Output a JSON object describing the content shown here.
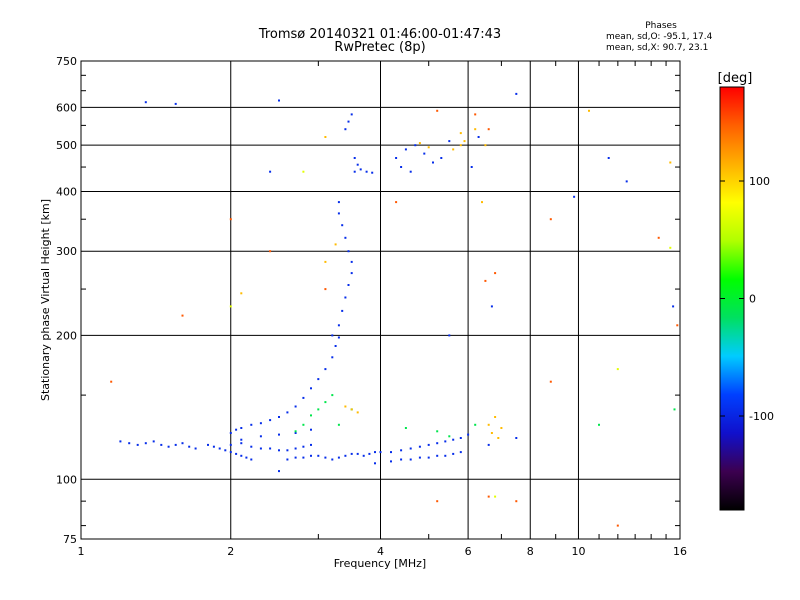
{
  "header": {
    "title": "Tromsø 20140321 01:46:00-01:47:43",
    "subtitle": "RwPretec (8p)"
  },
  "phase_stats": {
    "title": "Phases",
    "o_line": "mean, sd,O: -95.1, 17.4",
    "x_line": "mean, sd,X: 90.7, 23.1"
  },
  "colorbar": {
    "label": "[deg]",
    "range": [
      -180,
      180
    ],
    "ticks": [
      100,
      0,
      -100
    ],
    "colormap": [
      "#000000",
      "#3c0050",
      "#1010cc",
      "#0040ff",
      "#00ccff",
      "#00e060",
      "#00ff00",
      "#b0ff00",
      "#ffff00",
      "#ffb000",
      "#ff6000",
      "#ff0000"
    ]
  },
  "chart_data": {
    "type": "scatter",
    "title": "Tromsø 20140321 01:46:00-01:47:43",
    "subtitle": "RwPretec (8p)",
    "xlabel": "Frequency [MHz]",
    "ylabel": "Stationary phase Virtual Height [km]",
    "x_scale": "log",
    "y_scale": "log",
    "xlim": [
      1,
      16
    ],
    "ylim": [
      75,
      750
    ],
    "xticks": [
      1,
      2,
      4,
      6,
      8,
      10,
      16
    ],
    "yticks": [
      75,
      100,
      200,
      300,
      400,
      500,
      600,
      750
    ],
    "grid": true,
    "color_by": "phase [deg]",
    "series": [
      {
        "name": "",
        "points": [
          [
            1.2,
            120,
            -95
          ],
          [
            1.25,
            119,
            -95
          ],
          [
            1.3,
            118,
            -95
          ],
          [
            1.35,
            119,
            -95
          ],
          [
            1.4,
            120,
            -95
          ],
          [
            1.45,
            118,
            -95
          ],
          [
            1.5,
            117,
            -95
          ],
          [
            1.55,
            118,
            -95
          ],
          [
            1.6,
            119,
            -95
          ],
          [
            1.65,
            117,
            -95
          ],
          [
            1.7,
            116,
            -95
          ],
          [
            1.8,
            118,
            -95
          ],
          [
            1.85,
            117,
            -95
          ],
          [
            1.9,
            116,
            -95
          ],
          [
            1.95,
            115,
            -95
          ],
          [
            2.0,
            114,
            -95
          ],
          [
            2.05,
            113,
            -95
          ],
          [
            2.1,
            112,
            -95
          ],
          [
            2.15,
            111,
            -95
          ],
          [
            2.2,
            110,
            -95
          ],
          [
            2.0,
            125,
            -95
          ],
          [
            2.05,
            127,
            -95
          ],
          [
            2.1,
            128,
            -95
          ],
          [
            2.2,
            130,
            -95
          ],
          [
            2.3,
            131,
            -95
          ],
          [
            2.4,
            133,
            -95
          ],
          [
            2.5,
            135,
            -95
          ],
          [
            2.6,
            138,
            -95
          ],
          [
            2.7,
            142,
            -95
          ],
          [
            2.8,
            148,
            -95
          ],
          [
            2.9,
            155,
            -95
          ],
          [
            3.0,
            162,
            -95
          ],
          [
            3.1,
            170,
            -95
          ],
          [
            3.2,
            180,
            -95
          ],
          [
            3.25,
            190,
            -95
          ],
          [
            3.3,
            198,
            -95
          ],
          [
            2.0,
            118,
            -95
          ],
          [
            2.1,
            119,
            -95
          ],
          [
            2.2,
            117,
            -95
          ],
          [
            2.3,
            116,
            -95
          ],
          [
            2.4,
            116,
            -95
          ],
          [
            2.5,
            115,
            -95
          ],
          [
            2.6,
            115,
            -95
          ],
          [
            2.7,
            116,
            -95
          ],
          [
            2.8,
            117,
            -95
          ],
          [
            2.9,
            118,
            -95
          ],
          [
            2.1,
            121,
            -95
          ],
          [
            2.3,
            123,
            -95
          ],
          [
            2.5,
            124,
            -95
          ],
          [
            2.7,
            125,
            -95
          ],
          [
            2.9,
            127,
            -95
          ],
          [
            2.6,
            110,
            -95
          ],
          [
            2.7,
            111,
            -95
          ],
          [
            2.8,
            111,
            -95
          ],
          [
            2.9,
            112,
            -95
          ],
          [
            3.0,
            112,
            -95
          ],
          [
            3.1,
            111,
            -95
          ],
          [
            3.2,
            110,
            -95
          ],
          [
            3.3,
            111,
            -95
          ],
          [
            3.4,
            112,
            -95
          ],
          [
            3.5,
            113,
            -95
          ],
          [
            3.6,
            113,
            -95
          ],
          [
            3.7,
            112,
            -95
          ],
          [
            3.8,
            113,
            -95
          ],
          [
            3.9,
            114,
            -95
          ],
          [
            4.0,
            114,
            -95
          ],
          [
            4.2,
            114,
            -95
          ],
          [
            4.4,
            115,
            -95
          ],
          [
            4.6,
            116,
            -95
          ],
          [
            4.8,
            117,
            -95
          ],
          [
            5.0,
            118,
            -95
          ],
          [
            5.2,
            119,
            -95
          ],
          [
            5.4,
            120,
            -95
          ],
          [
            5.6,
            121,
            -95
          ],
          [
            5.8,
            122,
            -95
          ],
          [
            6.0,
            124,
            -95
          ],
          [
            4.2,
            109,
            -95
          ],
          [
            4.4,
            110,
            -95
          ],
          [
            4.6,
            110,
            -95
          ],
          [
            4.8,
            111,
            -95
          ],
          [
            5.0,
            111,
            -95
          ],
          [
            5.2,
            112,
            -95
          ],
          [
            5.4,
            112,
            -95
          ],
          [
            5.6,
            113,
            -95
          ],
          [
            5.8,
            114,
            -95
          ],
          [
            3.2,
            200,
            -95
          ],
          [
            3.3,
            210,
            -95
          ],
          [
            3.35,
            225,
            -95
          ],
          [
            3.4,
            240,
            -95
          ],
          [
            3.45,
            255,
            -95
          ],
          [
            3.5,
            270,
            -95
          ],
          [
            3.5,
            285,
            -95
          ],
          [
            3.45,
            300,
            -95
          ],
          [
            3.4,
            320,
            -95
          ],
          [
            3.35,
            340,
            -95
          ],
          [
            3.3,
            360,
            -95
          ],
          [
            3.3,
            380,
            -95
          ],
          [
            3.55,
            440,
            -95
          ],
          [
            3.65,
            445,
            -95
          ],
          [
            3.75,
            440,
            -95
          ],
          [
            3.85,
            438,
            -95
          ],
          [
            3.6,
            455,
            -95
          ],
          [
            3.55,
            470,
            -95
          ],
          [
            3.4,
            540,
            -95
          ],
          [
            3.45,
            560,
            -95
          ],
          [
            3.5,
            580,
            -95
          ],
          [
            4.3,
            470,
            -95
          ],
          [
            4.5,
            490,
            -95
          ],
          [
            4.7,
            500,
            -95
          ],
          [
            4.4,
            450,
            -95
          ],
          [
            4.6,
            440,
            -95
          ],
          [
            4.9,
            480,
            -95
          ],
          [
            5.1,
            460,
            -95
          ],
          [
            5.3,
            470,
            -95
          ],
          [
            5.5,
            510,
            -95
          ],
          [
            6.1,
            450,
            -95
          ],
          [
            6.3,
            520,
            -95
          ],
          [
            2.5,
            104,
            -95
          ],
          [
            3.9,
            108,
            -95
          ],
          [
            6.6,
            118,
            -95
          ],
          [
            7.5,
            122,
            -95
          ],
          [
            5.5,
            200,
            -95
          ],
          [
            2.4,
            440,
            -95
          ],
          [
            2.5,
            620,
            -95
          ],
          [
            1.55,
            610,
            -95
          ],
          [
            1.35,
            615,
            -95
          ],
          [
            6.7,
            230,
            -95
          ],
          [
            15.5,
            230,
            -95
          ],
          [
            11.5,
            470,
            -95
          ],
          [
            12.5,
            420,
            -95
          ],
          [
            9.8,
            390,
            -95
          ],
          [
            7.5,
            640,
            -95
          ],
          [
            2.9,
            136,
            -10
          ],
          [
            3.0,
            140,
            -10
          ],
          [
            2.8,
            130,
            -10
          ],
          [
            3.1,
            145,
            -10
          ],
          [
            2.7,
            126,
            -10
          ],
          [
            3.2,
            150,
            -10
          ],
          [
            4.5,
            128,
            -10
          ],
          [
            5.2,
            126,
            -10
          ],
          [
            5.5,
            123,
            -10
          ],
          [
            6.2,
            130,
            -10
          ],
          [
            3.5,
            140,
            -10
          ],
          [
            3.3,
            130,
            -10
          ],
          [
            15.6,
            140,
            -10
          ],
          [
            11.0,
            130,
            -10
          ],
          [
            3.5,
            140,
            110
          ],
          [
            3.6,
            138,
            110
          ],
          [
            3.4,
            142,
            110
          ],
          [
            6.7,
            125,
            110
          ],
          [
            6.9,
            122,
            110
          ],
          [
            6.6,
            130,
            110
          ],
          [
            6.8,
            135,
            110
          ],
          [
            7.0,
            128,
            110
          ],
          [
            4.8,
            505,
            110
          ],
          [
            5.0,
            495,
            110
          ],
          [
            5.8,
            500,
            110
          ],
          [
            5.9,
            510,
            110
          ],
          [
            5.6,
            490,
            110
          ],
          [
            5.8,
            530,
            110
          ],
          [
            6.2,
            540,
            110
          ],
          [
            3.1,
            520,
            110
          ],
          [
            10.5,
            590,
            110
          ],
          [
            15.3,
            460,
            110
          ],
          [
            6.4,
            380,
            110
          ],
          [
            3.1,
            285,
            110
          ],
          [
            3.25,
            310,
            110
          ],
          [
            2.1,
            245,
            110
          ],
          [
            6.5,
            500,
            110
          ],
          [
            5.2,
            590,
            150
          ],
          [
            3.1,
            250,
            150
          ],
          [
            2.4,
            300,
            150
          ],
          [
            6.2,
            580,
            150
          ],
          [
            6.8,
            270,
            150
          ],
          [
            8.8,
            350,
            150
          ],
          [
            1.6,
            220,
            150
          ],
          [
            1.15,
            160,
            150
          ],
          [
            6.5,
            260,
            150
          ],
          [
            8.8,
            160,
            150
          ],
          [
            15.8,
            210,
            150
          ],
          [
            6.6,
            92,
            150
          ],
          [
            5.2,
            90,
            150
          ],
          [
            7.5,
            90,
            150
          ],
          [
            12.0,
            80,
            150
          ],
          [
            14.5,
            320,
            150
          ],
          [
            6.6,
            540,
            150
          ],
          [
            2.0,
            350,
            150
          ],
          [
            4.3,
            380,
            150
          ],
          [
            2.0,
            230,
            70
          ],
          [
            15.3,
            305,
            70
          ],
          [
            6.8,
            92,
            70
          ],
          [
            2.8,
            440,
            70
          ],
          [
            12.0,
            170,
            70
          ]
        ]
      }
    ]
  }
}
